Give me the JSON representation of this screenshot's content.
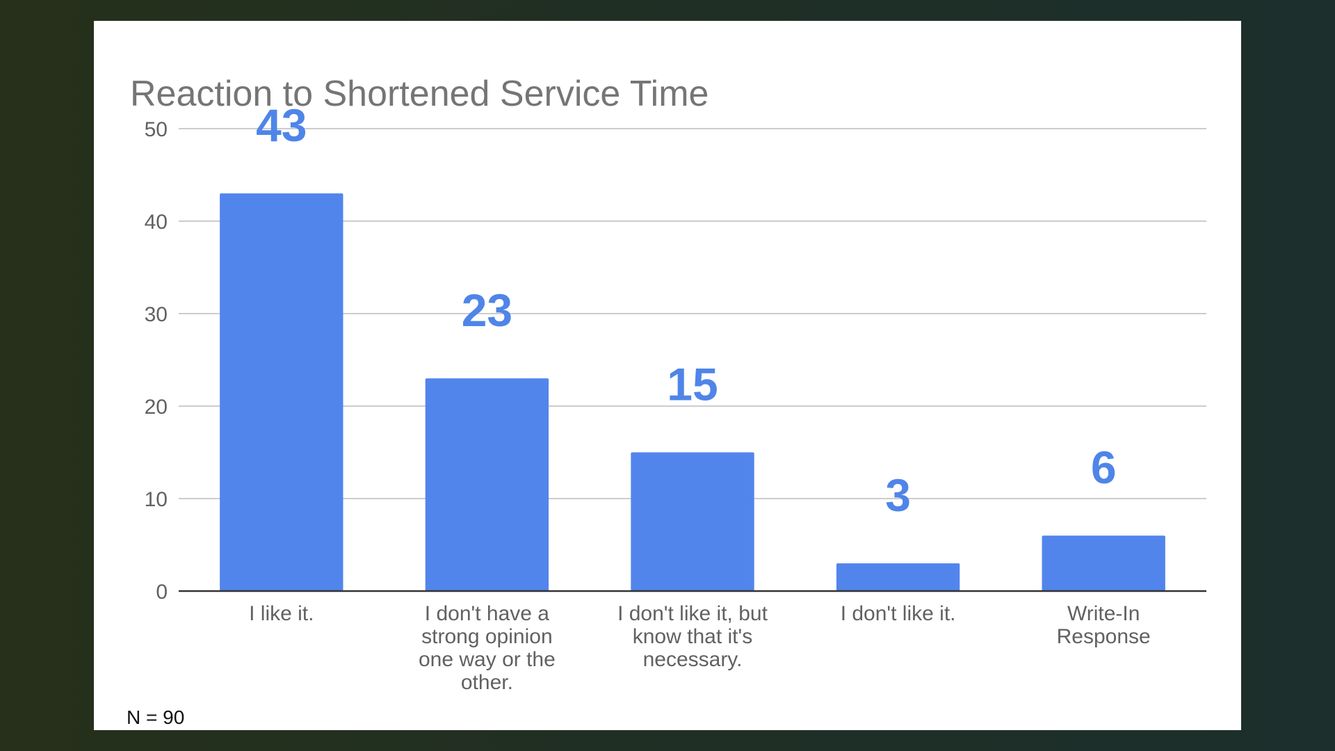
{
  "footnote": "N = 90",
  "chart_data": {
    "type": "bar",
    "title": "Reaction to Shortened Service Time",
    "xlabel": "",
    "ylabel": "",
    "ylim": [
      0,
      50
    ],
    "yticks": [
      0,
      10,
      20,
      30,
      40,
      50
    ],
    "grid": true,
    "bar_color": "#5285EC",
    "label_color": "#4F85E8",
    "categories": [
      [
        "I like it."
      ],
      [
        "I don't have a",
        "strong opinion",
        "one way or the",
        "other."
      ],
      [
        "I don't like it, but",
        "know that it's",
        "necessary."
      ],
      [
        "I don't like it."
      ],
      [
        "Write-In",
        "Response"
      ]
    ],
    "values": [
      43,
      23,
      15,
      3,
      6
    ],
    "data_labels": [
      "43",
      "23",
      "15",
      "3",
      "6"
    ]
  }
}
